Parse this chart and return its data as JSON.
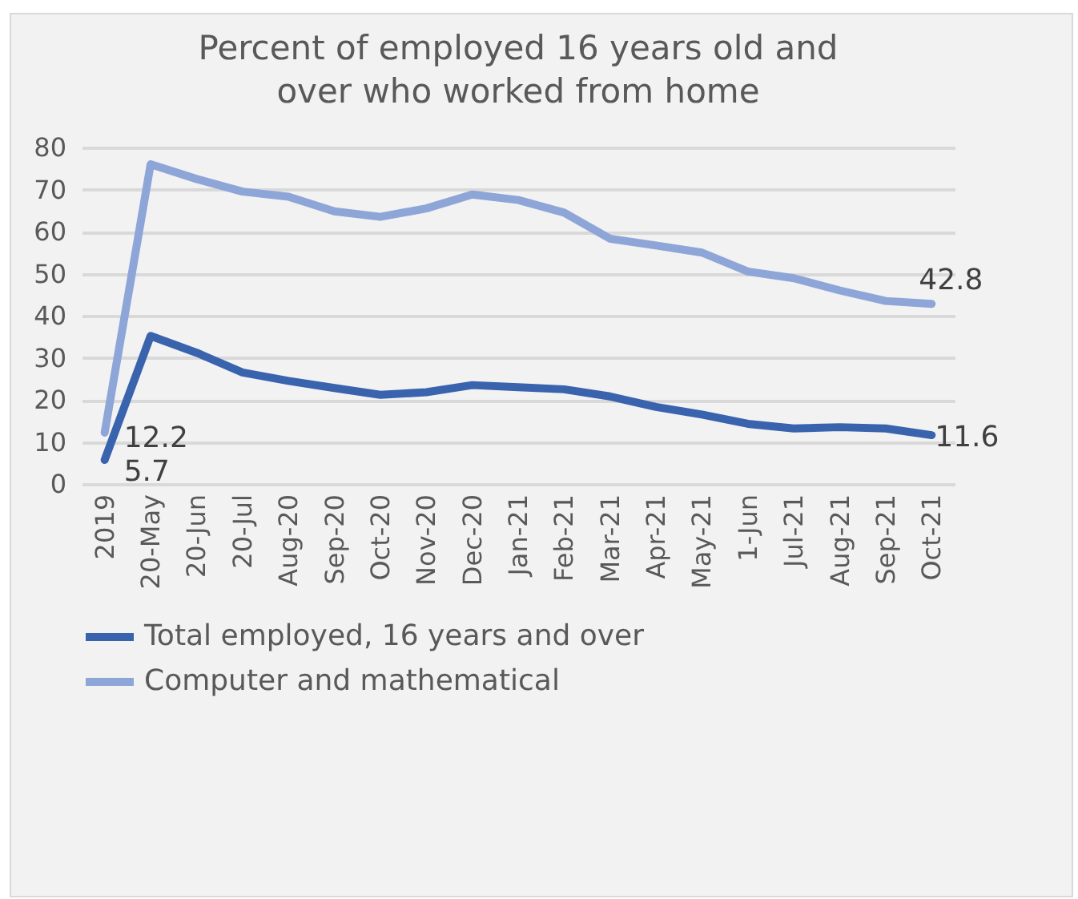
{
  "chart_data": {
    "type": "line",
    "title": "Percent of employed 16 years old and over who worked from home",
    "categories": [
      "2019",
      "20-May",
      "20-Jun",
      "20-Jul",
      "Aug-20",
      "Sep-20",
      "Oct-20",
      "Nov-20",
      "Dec-20",
      "Jan-21",
      "Feb-21",
      "Mar-21",
      "Apr-21",
      "May-21",
      "1-Jun",
      "Jul-21",
      "Aug-21",
      "Sep-21",
      "Oct-21"
    ],
    "series": [
      {
        "name": "Total employed, 16 years and over",
        "color": "#3a63ae",
        "values": [
          5.7,
          35.2,
          31.2,
          26.5,
          24.5,
          22.8,
          21.2,
          21.8,
          23.5,
          23.0,
          22.5,
          20.8,
          18.3,
          16.5,
          14.3,
          13.2,
          13.5,
          13.2,
          11.6
        ],
        "value_labels": [
          "5.7",
          null,
          null,
          null,
          null,
          null,
          null,
          null,
          null,
          null,
          null,
          null,
          null,
          null,
          null,
          null,
          null,
          null,
          "11.6"
        ]
      },
      {
        "name": "Computer and mathematical",
        "color": "#8ea5d8",
        "values": [
          12.2,
          76,
          72.5,
          69.5,
          68.3,
          64.8,
          63.5,
          65.5,
          68.8,
          67.5,
          64.5,
          58.3,
          56.7,
          55.0,
          50.5,
          48.9,
          46.0,
          43.5,
          42.8
        ],
        "value_labels": [
          "12.2",
          null,
          null,
          null,
          null,
          null,
          null,
          null,
          null,
          null,
          null,
          null,
          null,
          null,
          null,
          null,
          null,
          null,
          "42.8"
        ]
      }
    ],
    "ylim": [
      0,
      80
    ],
    "yticks": [
      0,
      10,
      20,
      30,
      40,
      50,
      60,
      70,
      80
    ],
    "grid": "y",
    "legend": "bottom",
    "marker": "none",
    "line_style": "solid"
  }
}
